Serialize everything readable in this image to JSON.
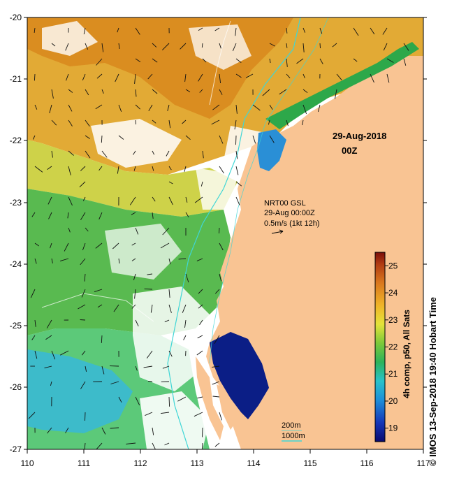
{
  "map": {
    "x_ticks": [
      "110",
      "111",
      "112",
      "113",
      "114",
      "115",
      "116",
      "117"
    ],
    "y_ticks": [
      "-20",
      "-21",
      "-22",
      "-23",
      "-24",
      "-25",
      "-26",
      "-27"
    ],
    "date_label": "29-Aug-2018",
    "time_label": "00Z",
    "legend_product": "NRT00 GSL",
    "legend_time": "29-Aug 00:00Z",
    "legend_scale": "0.5m/s (1kt 12h)",
    "bathy_200": "200m",
    "bathy_1000": "1000m",
    "colorbar_title": "4h comp, p50, All Sats",
    "colorbar_ticks": [
      "25",
      "24",
      "23",
      "22",
      "21",
      "20",
      "19"
    ],
    "colorbar_range": [
      18.5,
      25.5
    ],
    "credit": "© IMOS 13-Sep-2018 19:40 Hobart Time",
    "colors": {
      "land": "#f9c493",
      "warm": "#d98a1e",
      "mid": "#e8c320",
      "green": "#3fb33d",
      "cyan": "#33b6e0",
      "blue": "#1f3fa6",
      "navy": "#0b1e86",
      "bathy": "#3fd6d6"
    }
  }
}
